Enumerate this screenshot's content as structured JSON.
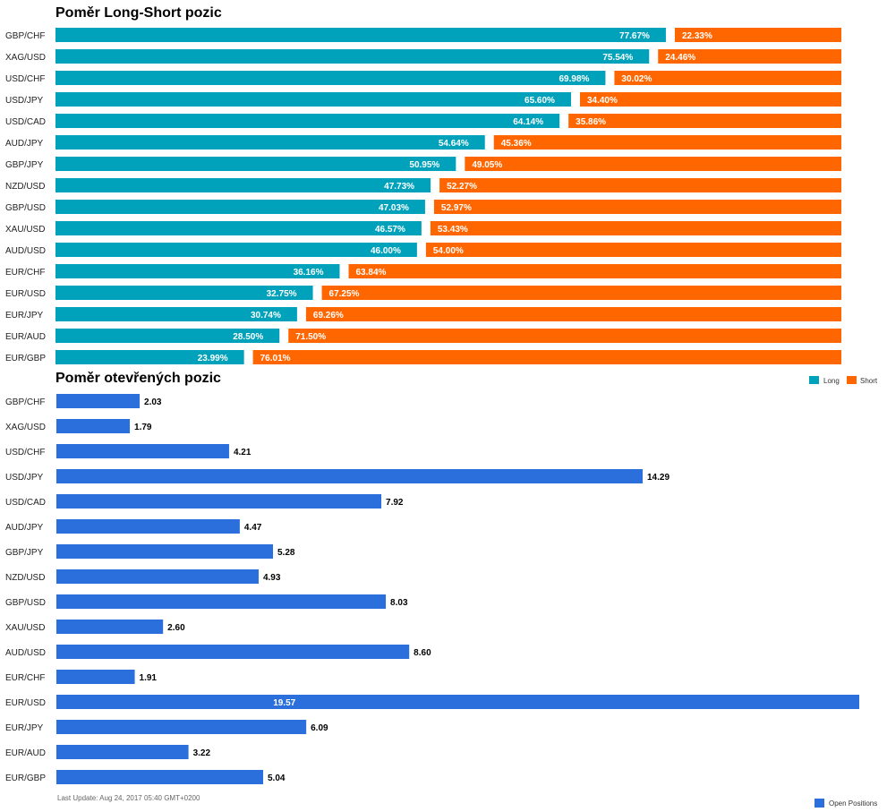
{
  "chart_data": [
    {
      "type": "bar",
      "orientation": "horizontal",
      "stacked": true,
      "title": "Poměr Long-Short pozic",
      "categories": [
        "GBP/CHF",
        "XAG/USD",
        "USD/CHF",
        "USD/JPY",
        "USD/CAD",
        "AUD/JPY",
        "GBP/JPY",
        "NZD/USD",
        "GBP/USD",
        "XAU/USD",
        "AUD/USD",
        "EUR/CHF",
        "EUR/USD",
        "EUR/JPY",
        "EUR/AUD",
        "EUR/GBP"
      ],
      "series": [
        {
          "name": "Long",
          "color": "#00A2BB",
          "values": [
            77.67,
            75.54,
            69.98,
            65.6,
            64.14,
            54.64,
            50.95,
            47.73,
            47.03,
            46.57,
            46.0,
            36.16,
            32.75,
            30.74,
            28.5,
            23.99
          ],
          "labels": [
            "77.67%",
            "75.54%",
            "69.98%",
            "65.60%",
            "64.14%",
            "54.64%",
            "50.95%",
            "47.73%",
            "47.03%",
            "46.57%",
            "46.00%",
            "36.16%",
            "32.75%",
            "30.74%",
            "28.50%",
            "23.99%"
          ]
        },
        {
          "name": "Short",
          "color": "#FF6600",
          "values": [
            22.33,
            24.46,
            30.02,
            34.4,
            35.86,
            45.36,
            49.05,
            52.27,
            52.97,
            53.43,
            54.0,
            63.84,
            67.25,
            69.26,
            71.5,
            76.01
          ],
          "labels": [
            "22.33%",
            "24.46%",
            "30.02%",
            "34.40%",
            "35.86%",
            "45.36%",
            "49.05%",
            "52.27%",
            "52.97%",
            "53.43%",
            "54.00%",
            "63.84%",
            "67.25%",
            "69.26%",
            "71.50%",
            "76.01%"
          ]
        }
      ],
      "xlim": [
        0,
        100
      ],
      "legend": "right"
    },
    {
      "type": "bar",
      "orientation": "horizontal",
      "title": "Poměr otevřených pozic",
      "categories": [
        "GBP/CHF",
        "XAG/USD",
        "USD/CHF",
        "USD/JPY",
        "USD/CAD",
        "AUD/JPY",
        "GBP/JPY",
        "NZD/USD",
        "GBP/USD",
        "XAU/USD",
        "AUD/USD",
        "EUR/CHF",
        "EUR/USD",
        "EUR/JPY",
        "EUR/AUD",
        "EUR/GBP"
      ],
      "series": [
        {
          "name": "Open Positions",
          "color": "#2A6FDB",
          "values": [
            2.03,
            1.79,
            4.21,
            14.29,
            7.92,
            4.47,
            5.28,
            4.93,
            8.03,
            2.6,
            8.6,
            1.91,
            19.57,
            6.09,
            3.22,
            5.04
          ],
          "labels": [
            "2.03",
            "1.79",
            "4.21",
            "14.29",
            "7.92",
            "4.47",
            "5.28",
            "4.93",
            "8.03",
            "2.60",
            "8.60",
            "1.91",
            "19.57",
            "6.09",
            "3.22",
            "5.04"
          ]
        }
      ],
      "xlim": [
        0,
        19.57
      ],
      "legend": "bottom-right"
    }
  ],
  "footer": {
    "last_update": "Last Update: Aug 24, 2017 05:40 GMT+0200"
  }
}
